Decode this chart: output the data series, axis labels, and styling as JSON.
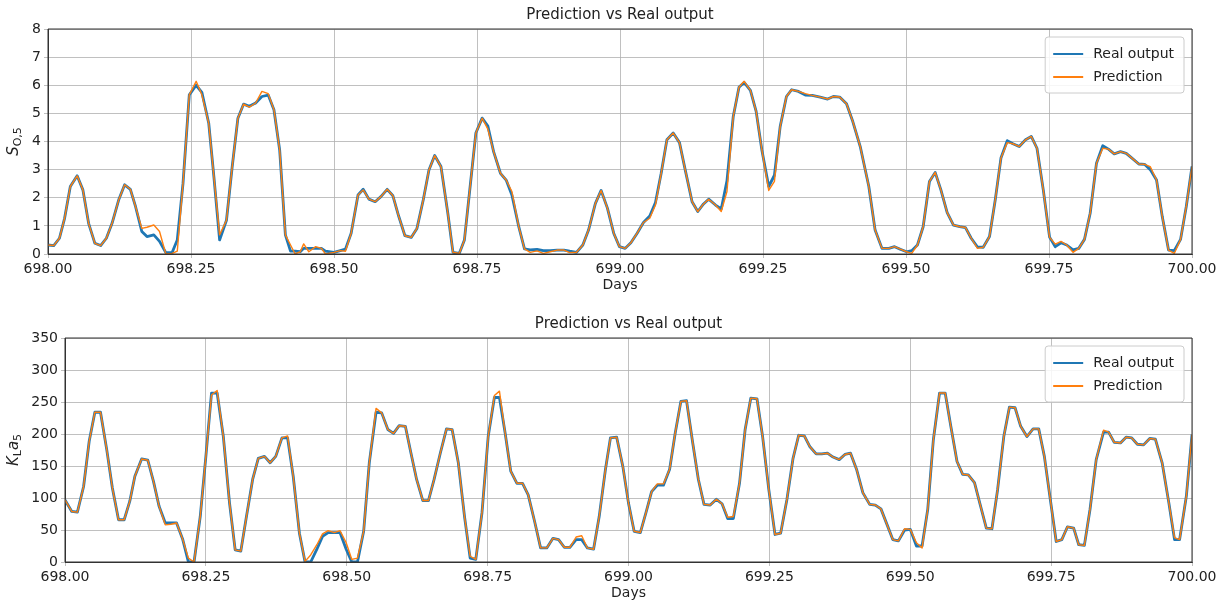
{
  "chart_data": [
    {
      "type": "line",
      "title": "Prediction vs Real output",
      "xlabel": "Days",
      "ylabel": "S$_{O,5}$",
      "x": [
        698.0,
        698.01,
        698.02,
        698.029,
        698.039,
        698.051,
        698.061,
        698.071,
        698.082,
        698.092,
        698.102,
        698.112,
        698.124,
        698.134,
        698.144,
        698.153,
        698.164,
        698.173,
        698.185,
        698.195,
        698.206,
        698.217,
        698.226,
        698.236,
        698.247,
        698.259,
        698.269,
        698.281,
        698.29,
        698.3,
        698.312,
        698.322,
        698.332,
        698.342,
        698.352,
        698.363,
        698.374,
        698.385,
        698.395,
        698.405,
        698.415,
        698.424,
        698.432,
        698.441,
        698.447,
        698.456,
        698.468,
        698.478,
        698.485,
        698.5,
        698.511,
        698.52,
        698.53,
        698.542,
        698.551,
        698.561,
        698.572,
        698.582,
        698.593,
        698.603,
        698.613,
        698.624,
        698.635,
        698.645,
        698.656,
        698.666,
        698.676,
        698.687,
        698.699,
        698.708,
        698.719,
        698.728,
        698.738,
        698.748,
        698.759,
        698.769,
        698.779,
        698.791,
        698.801,
        698.811,
        698.823,
        698.833,
        698.843,
        698.855,
        698.866,
        698.878,
        698.89,
        698.902,
        698.912,
        698.924,
        698.935,
        698.945,
        698.957,
        698.967,
        698.978,
        698.989,
        698.999,
        699.009,
        699.019,
        699.03,
        699.041,
        699.052,
        699.062,
        699.072,
        699.082,
        699.093,
        699.104,
        699.114,
        699.126,
        699.136,
        699.146,
        699.155,
        699.167,
        699.177,
        699.187,
        699.198,
        699.208,
        699.217,
        699.228,
        699.238,
        699.248,
        699.26,
        699.27,
        699.28,
        699.291,
        699.3,
        699.312,
        699.324,
        699.336,
        699.35,
        699.363,
        699.373,
        699.384,
        699.396,
        699.407,
        699.42,
        699.435,
        699.446,
        699.458,
        699.47,
        699.48,
        699.49,
        699.501,
        699.51,
        699.52,
        699.53,
        699.541,
        699.551,
        699.561,
        699.572,
        699.583,
        699.594,
        699.604,
        699.614,
        699.625,
        699.635,
        699.646,
        699.656,
        699.666,
        699.677,
        699.687,
        699.698,
        699.709,
        699.719,
        699.729,
        699.74,
        699.751,
        699.761,
        699.771,
        699.781,
        699.792,
        699.802,
        699.812,
        699.822,
        699.833,
        699.844,
        699.854,
        699.864,
        699.875,
        699.885,
        699.895,
        699.907,
        699.917,
        699.927,
        699.938,
        699.948,
        699.959,
        699.969,
        699.98,
        699.99,
        700.0
      ],
      "series": [
        {
          "name": "Real output",
          "color": "#1f77b4",
          "values": [
            0.32,
            0.3,
            0.56,
            1.27,
            2.4,
            2.78,
            2.28,
            1.09,
            0.38,
            0.3,
            0.56,
            1.09,
            1.95,
            2.46,
            2.3,
            1.69,
            0.8,
            0.62,
            0.68,
            0.45,
            0.05,
            0.05,
            0.5,
            2.5,
            5.66,
            6.0,
            5.75,
            4.65,
            2.75,
            0.5,
            1.2,
            3.1,
            4.83,
            5.33,
            5.25,
            5.37,
            5.6,
            5.65,
            5.13,
            3.7,
            0.68,
            0.1,
            0.1,
            0.08,
            0.2,
            0.2,
            0.2,
            0.2,
            0.1,
            0.06,
            0.12,
            0.17,
            0.74,
            2.1,
            2.3,
            1.95,
            1.86,
            2.04,
            2.3,
            2.07,
            1.35,
            0.65,
            0.59,
            0.91,
            1.92,
            2.99,
            3.5,
            3.11,
            1.45,
            0.06,
            0.02,
            0.5,
            2.4,
            4.3,
            4.83,
            4.55,
            3.64,
            2.87,
            2.63,
            2.1,
            0.97,
            0.18,
            0.15,
            0.16,
            0.12,
            0.12,
            0.14,
            0.14,
            0.1,
            0.06,
            0.32,
            0.85,
            1.8,
            2.26,
            1.63,
            0.74,
            0.26,
            0.2,
            0.4,
            0.74,
            1.12,
            1.35,
            1.83,
            2.87,
            4.06,
            4.3,
            3.96,
            2.99,
            1.86,
            1.51,
            1.78,
            1.95,
            1.74,
            1.6,
            2.6,
            4.89,
            5.93,
            6.1,
            5.82,
            5.07,
            3.7,
            2.4,
            2.8,
            4.53,
            5.6,
            5.84,
            5.78,
            5.65,
            5.64,
            5.58,
            5.51,
            5.6,
            5.58,
            5.34,
            4.71,
            3.82,
            2.4,
            0.85,
            0.2,
            0.2,
            0.26,
            0.17,
            0.08,
            0.12,
            0.32,
            0.97,
            2.58,
            2.9,
            2.28,
            1.47,
            1.03,
            0.97,
            0.94,
            0.56,
            0.25,
            0.24,
            0.62,
            1.92,
            3.41,
            4.03,
            3.92,
            3.82,
            4.06,
            4.18,
            3.76,
            2.28,
            0.6,
            0.26,
            0.4,
            0.32,
            0.15,
            0.2,
            0.52,
            1.45,
            3.23,
            3.85,
            3.73,
            3.56,
            3.64,
            3.58,
            3.41,
            3.2,
            3.19,
            3.0,
            2.63,
            1.33,
            0.14,
            0.12,
            0.52,
            1.69,
            3.11
          ]
        },
        {
          "name": "Prediction",
          "color": "#ff7f0e",
          "values": [
            0.32,
            0.3,
            0.56,
            1.27,
            2.4,
            2.78,
            2.28,
            1.09,
            0.38,
            0.3,
            0.56,
            1.09,
            1.95,
            2.46,
            2.3,
            1.69,
            0.91,
            0.95,
            1.03,
            0.8,
            0,
            0.02,
            0.1,
            2.5,
            5.66,
            6.14,
            5.66,
            4.65,
            2.75,
            0.68,
            1.2,
            3.1,
            4.83,
            5.33,
            5.22,
            5.37,
            5.78,
            5.7,
            5.13,
            3.7,
            0.68,
            0.32,
            0,
            0.08,
            0.36,
            0.08,
            0.26,
            0.2,
            0,
            0.06,
            0.12,
            0.1,
            0.74,
            2.1,
            2.28,
            1.95,
            1.86,
            2.04,
            2.3,
            2.07,
            1.35,
            0.65,
            0.59,
            0.91,
            1.92,
            2.99,
            3.5,
            3.11,
            1.45,
            0.06,
            0.02,
            0.5,
            2.4,
            4.3,
            4.83,
            4.44,
            3.64,
            2.87,
            2.63,
            2.22,
            0.97,
            0.18,
            0.06,
            0.11,
            0.02,
            0.08,
            0.14,
            0.14,
            0.05,
            0.06,
            0.32,
            0.85,
            1.8,
            2.26,
            1.63,
            0.74,
            0.26,
            0.2,
            0.4,
            0.74,
            1.12,
            1.27,
            1.74,
            2.87,
            4.06,
            4.3,
            3.96,
            2.99,
            1.86,
            1.51,
            1.78,
            1.95,
            1.74,
            1.51,
            2.22,
            4.89,
            5.93,
            6.14,
            5.82,
            5.07,
            3.7,
            2.26,
            2.58,
            4.53,
            5.6,
            5.84,
            5.78,
            5.7,
            5.64,
            5.58,
            5.51,
            5.6,
            5.58,
            5.34,
            4.71,
            3.82,
            2.4,
            0.85,
            0.2,
            0.2,
            0.26,
            0.17,
            0.08,
            0.02,
            0.32,
            0.97,
            2.58,
            2.9,
            2.28,
            1.47,
            1.03,
            0.97,
            0.94,
            0.56,
            0.2,
            0.24,
            0.62,
            1.92,
            3.41,
            3.96,
            3.92,
            3.82,
            4.06,
            4.18,
            3.76,
            2.28,
            0.59,
            0.35,
            0.45,
            0.32,
            0.06,
            0.2,
            0.52,
            1.45,
            3.23,
            3.76,
            3.73,
            3.56,
            3.64,
            3.58,
            3.41,
            3.2,
            3.19,
            3.11,
            2.63,
            1.33,
            0.14,
            0.02,
            0.52,
            1.69,
            3.11
          ]
        }
      ],
      "xlim": [
        698,
        700
      ],
      "xticks": [
        {
          "value": 698,
          "label": "698.00"
        },
        {
          "value": 698.25,
          "label": "698.25"
        },
        {
          "value": 698.5,
          "label": "698.50"
        },
        {
          "value": 698.75,
          "label": "698.75"
        },
        {
          "value": 699,
          "label": "699.00"
        },
        {
          "value": 699.25,
          "label": "699.25"
        },
        {
          "value": 699.5,
          "label": "699.50"
        },
        {
          "value": 699.75,
          "label": "699.75"
        },
        {
          "value": 700,
          "label": "700.00"
        }
      ],
      "ylim": [
        0,
        8
      ],
      "yticks": [
        0,
        1,
        2,
        3,
        4,
        5,
        6,
        7,
        8
      ],
      "grid": true,
      "legend": "top right"
    },
    {
      "type": "line",
      "title": "Prediction vs Real output",
      "xlabel": "Days",
      "ylabel": "K$_{L}$a$_{5}$",
      "x": [
        698.0,
        698.012,
        698.022,
        698.033,
        698.043,
        698.053,
        698.063,
        698.074,
        698.084,
        698.095,
        698.105,
        698.115,
        698.124,
        698.136,
        698.147,
        698.157,
        698.167,
        698.178,
        698.188,
        698.198,
        698.209,
        698.219,
        698.229,
        698.24,
        698.25,
        698.26,
        698.27,
        698.281,
        698.292,
        698.302,
        698.312,
        698.322,
        698.333,
        698.343,
        698.354,
        698.364,
        698.374,
        698.385,
        698.395,
        698.405,
        698.416,
        698.426,
        698.436,
        698.447,
        698.457,
        698.467,
        698.478,
        698.488,
        698.499,
        698.509,
        698.519,
        698.53,
        698.54,
        698.552,
        698.562,
        698.573,
        698.583,
        698.593,
        698.604,
        698.614,
        698.624,
        698.635,
        698.645,
        698.655,
        698.666,
        698.677,
        698.687,
        698.698,
        698.709,
        698.719,
        698.729,
        698.74,
        698.751,
        698.762,
        698.771,
        698.781,
        698.791,
        698.802,
        698.812,
        698.822,
        698.834,
        698.844,
        698.855,
        698.866,
        698.876,
        698.886,
        698.896,
        698.907,
        698.917,
        698.927,
        698.938,
        698.948,
        698.959,
        698.968,
        698.979,
        698.99,
        699.0,
        699.01,
        699.021,
        699.031,
        699.041,
        699.051,
        699.062,
        699.073,
        699.083,
        699.093,
        699.103,
        699.114,
        699.124,
        699.134,
        699.145,
        699.156,
        699.166,
        699.176,
        699.186,
        699.197,
        699.207,
        699.217,
        699.228,
        699.238,
        699.249,
        699.26,
        699.27,
        699.281,
        699.292,
        699.302,
        699.312,
        699.322,
        699.333,
        699.343,
        699.353,
        699.363,
        699.374,
        699.384,
        699.394,
        699.405,
        699.416,
        699.428,
        699.438,
        699.448,
        699.459,
        699.469,
        699.479,
        699.49,
        699.5,
        699.511,
        699.521,
        699.531,
        699.541,
        699.552,
        699.562,
        699.572,
        699.583,
        699.593,
        699.603,
        699.614,
        699.624,
        699.635,
        699.645,
        699.655,
        699.666,
        699.676,
        699.686,
        699.696,
        699.707,
        699.718,
        699.728,
        699.738,
        699.749,
        699.759,
        699.769,
        699.779,
        699.79,
        699.799,
        699.809,
        699.819,
        699.83,
        699.843,
        699.852,
        699.862,
        699.873,
        699.883,
        699.893,
        699.903,
        699.914,
        699.925,
        699.935,
        699.947,
        699.959,
        699.969,
        699.978,
        699.99,
        700.0
      ],
      "series": [
        {
          "name": "Real output",
          "color": "#1f77b4",
          "values": [
            97,
            79,
            78,
            118,
            189,
            234,
            234,
            176,
            116,
            66,
            66,
            95,
            134,
            161,
            159,
            126,
            87,
            61,
            61,
            61,
            35,
            0,
            0,
            71,
            165,
            264,
            264,
            196,
            92,
            19,
            17,
            71,
            129,
            162,
            165,
            155,
            165,
            194,
            194,
            134,
            45,
            0,
            0,
            20,
            40,
            46,
            46,
            46,
            20,
            0,
            0,
            48,
            155,
            234,
            233,
            207,
            201,
            213,
            212,
            170,
            129,
            96,
            96,
            129,
            170,
            208,
            207,
            155,
            71,
            6,
            4,
            77,
            196,
            257,
            257,
            202,
            142,
            123,
            123,
            105,
            61,
            22,
            22,
            37,
            35,
            23,
            23,
            35,
            35,
            22,
            20,
            71,
            144,
            194,
            195,
            149,
            92,
            48,
            46,
            77,
            110,
            120,
            120,
            145,
            202,
            251,
            252,
            186,
            129,
            90,
            89,
            98,
            91,
            68,
            68,
            123,
            207,
            256,
            255,
            196,
            113,
            43,
            45,
            97,
            162,
            198,
            197,
            180,
            169,
            169,
            170,
            164,
            160,
            168,
            170,
            144,
            108,
            90,
            89,
            83,
            58,
            35,
            33,
            50,
            51,
            25,
            25,
            82,
            191,
            264,
            264,
            212,
            157,
            137,
            136,
            124,
            90,
            53,
            52,
            113,
            196,
            242,
            241,
            212,
            196,
            208,
            208,
            165,
            95,
            32,
            35,
            55,
            53,
            27,
            26,
            82,
            160,
            203,
            203,
            187,
            186,
            195,
            194,
            184,
            183,
            193,
            192,
            155,
            92,
            35,
            35,
            103,
            199
          ]
        },
        {
          "name": "Prediction",
          "color": "#ff7f0e",
          "values": [
            97,
            79,
            78,
            118,
            189,
            234,
            234,
            176,
            116,
            66,
            66,
            95,
            134,
            161,
            159,
            126,
            87,
            58,
            59,
            61,
            35,
            6,
            0,
            71,
            165,
            261,
            268,
            196,
            92,
            19,
            17,
            71,
            129,
            162,
            165,
            155,
            165,
            194,
            197,
            134,
            45,
            1,
            11,
            27,
            44,
            49,
            46,
            49,
            30,
            4,
            6,
            48,
            155,
            240,
            233,
            207,
            201,
            213,
            212,
            170,
            129,
            96,
            96,
            129,
            170,
            208,
            207,
            155,
            71,
            9,
            4,
            77,
            196,
            260,
            267,
            202,
            142,
            123,
            123,
            105,
            61,
            22,
            22,
            37,
            35,
            23,
            23,
            39,
            41,
            22,
            20,
            71,
            144,
            194,
            195,
            149,
            92,
            48,
            46,
            77,
            110,
            122,
            122,
            145,
            202,
            251,
            252,
            186,
            129,
            90,
            89,
            98,
            91,
            70,
            71,
            123,
            207,
            256,
            255,
            196,
            113,
            43,
            45,
            97,
            162,
            198,
            197,
            180,
            169,
            169,
            170,
            164,
            160,
            168,
            170,
            144,
            108,
            90,
            89,
            83,
            58,
            35,
            33,
            52,
            51,
            30,
            22,
            82,
            191,
            264,
            264,
            212,
            157,
            137,
            136,
            124,
            90,
            53,
            52,
            113,
            196,
            242,
            241,
            212,
            196,
            208,
            208,
            165,
            95,
            32,
            35,
            55,
            53,
            27,
            26,
            82,
            160,
            206,
            203,
            187,
            186,
            195,
            194,
            184,
            183,
            193,
            192,
            155,
            92,
            38,
            35,
            103,
            199
          ]
        }
      ],
      "xlim": [
        698,
        700
      ],
      "xticks": [
        {
          "value": 698,
          "label": "698.00"
        },
        {
          "value": 698.25,
          "label": "698.25"
        },
        {
          "value": 698.5,
          "label": "698.50"
        },
        {
          "value": 698.75,
          "label": "698.75"
        },
        {
          "value": 699,
          "label": "699.00"
        },
        {
          "value": 699.25,
          "label": "699.25"
        },
        {
          "value": 699.5,
          "label": "699.50"
        },
        {
          "value": 699.75,
          "label": "699.75"
        },
        {
          "value": 700,
          "label": "700.00"
        }
      ],
      "ylim": [
        0,
        350
      ],
      "yticks": [
        0,
        50,
        100,
        150,
        200,
        250,
        300,
        350
      ],
      "grid": true,
      "legend": "top right"
    }
  ]
}
